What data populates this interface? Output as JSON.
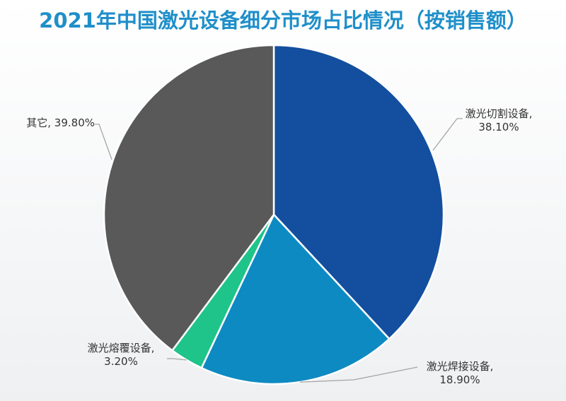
{
  "chart_data": {
    "type": "pie",
    "title": "2021年中国激光设备细分市场占比情况（按销售额）",
    "slices": [
      {
        "name": "激光切割设备",
        "value": 38.1,
        "label": "38.10%",
        "color": "#134f9e"
      },
      {
        "name": "激光焊接设备",
        "value": 18.9,
        "label": "18.90%",
        "color": "#0e8ac2"
      },
      {
        "name": "激光熔覆设备",
        "value": 3.2,
        "label": "3.20%",
        "color": "#1fc48a"
      },
      {
        "name": "其它",
        "value": 39.8,
        "label": "39.80%",
        "color": "#595959"
      }
    ],
    "start": "12 o'clock, clockwise"
  }
}
